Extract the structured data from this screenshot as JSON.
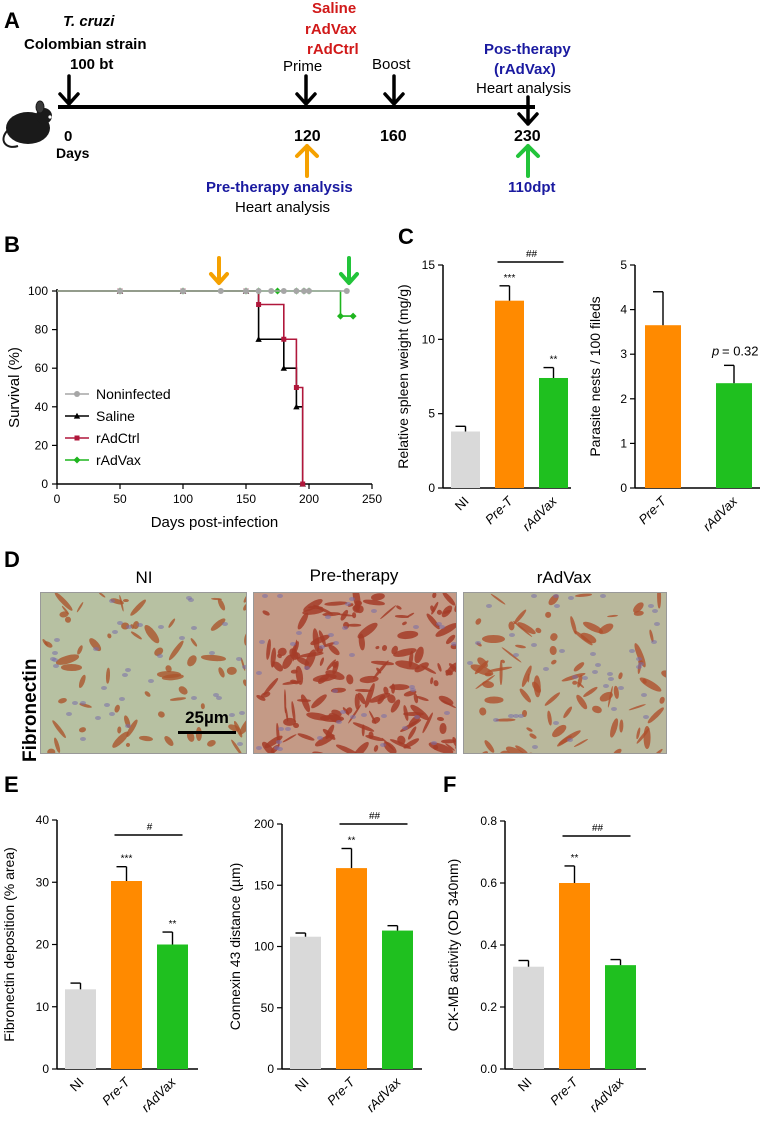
{
  "panels": {
    "a": "A",
    "b": "B",
    "c": "C",
    "d": "D",
    "e": "E",
    "f": "F"
  },
  "colors": {
    "nonin": "#a6a6a6",
    "saline": "#000000",
    "rAdCtrl": "#b0173b",
    "rAdVax": "#1fb51f",
    "ni_bar": "#d9d9d9",
    "pret": "#ff8a00",
    "radvax": "#1fc01f",
    "navy": "#1a1aa0",
    "red": "#d11919",
    "orange_arrow": "#f5a100",
    "green_arrow": "#22c43a"
  },
  "timeline": {
    "parasite": "T. cruzi",
    "strain": "Colombian strain",
    "dose": "100 bt",
    "treat1": "Saline",
    "treat2": "rAdVax",
    "treat3": "rAdCtrl",
    "prime": "Prime",
    "boost": "Boost",
    "post_title1": "Pos-therapy",
    "post_title2": "(rAdVax)",
    "post_heart": "Heart  analysis",
    "d0": "0",
    "days": "Days",
    "d120": "120",
    "d160": "160",
    "d230": "230",
    "pre_title": "Pre-therapy analysis",
    "pre_heart": "Heart analysis",
    "dpt": "110dpt"
  },
  "survival": {
    "chart_data": {
      "type": "line",
      "xlabel": "Days post-infection",
      "ylabel": "Survival (%)",
      "xlim": [
        0,
        250
      ],
      "ylim": [
        0,
        100
      ],
      "xticks": [
        "0",
        "50",
        "100",
        "150",
        "200",
        "250"
      ],
      "yticks": [
        "0",
        "20",
        "40",
        "60",
        "80",
        "100"
      ],
      "legend": [
        "Noninfected",
        "Saline",
        "rAdCtrl",
        "rAdVax"
      ],
      "series": [
        {
          "name": "Noninfected",
          "x": [
            0,
            50,
            100,
            130,
            150,
            160,
            170,
            180,
            190,
            196,
            200,
            230
          ],
          "y": [
            100,
            100,
            100,
            100,
            100,
            100,
            100,
            100,
            100,
            100,
            100,
            100
          ]
        },
        {
          "name": "Saline",
          "x": [
            0,
            50,
            100,
            150,
            160,
            180,
            190,
            195
          ],
          "y": [
            100,
            100,
            100,
            100,
            75,
            60,
            40,
            0
          ]
        },
        {
          "name": "rAdCtrl",
          "x": [
            0,
            50,
            100,
            150,
            160,
            180,
            190,
            195
          ],
          "y": [
            100,
            100,
            100,
            100,
            93,
            75,
            50,
            0
          ]
        },
        {
          "name": "rAdVax",
          "x": [
            0,
            50,
            100,
            150,
            160,
            175,
            190,
            196,
            200,
            225,
            235
          ],
          "y": [
            100,
            100,
            100,
            100,
            100,
            100,
            100,
            100,
            100,
            87,
            87
          ]
        }
      ]
    }
  },
  "spleen": {
    "chart_data": {
      "type": "bar",
      "ylabel": "Relative spleen weight (mg/g)",
      "categories": [
        "NI",
        "Pre-T",
        "rAdVax"
      ],
      "values": [
        3.8,
        12.6,
        7.4
      ],
      "errors": [
        0.35,
        1.0,
        0.7
      ],
      "ylim": [
        0,
        15
      ],
      "yticks": [
        "0",
        "5",
        "10",
        "15"
      ],
      "stars": [
        "",
        "***",
        "**"
      ],
      "hash": "##"
    }
  },
  "parasite": {
    "chart_data": {
      "type": "bar",
      "ylabel": "Parasite nests / 100 fileds",
      "categories": [
        "Pre-T",
        "rAdVax"
      ],
      "values": [
        3.65,
        2.35
      ],
      "errors": [
        0.75,
        0.4
      ],
      "ylim": [
        0,
        5
      ],
      "yticks": [
        "0",
        "1",
        "2",
        "3",
        "4",
        "5"
      ],
      "p_label": "p",
      "p_value": "= 0.32"
    }
  },
  "micro": {
    "row_label": "Fibronectin",
    "titles": [
      "NI",
      "Pre-therapy",
      "rAdVax"
    ],
    "scale": "25µm"
  },
  "fibronectin": {
    "chart_data": {
      "type": "bar",
      "ylabel": "Fibronectin deposition (% area)",
      "categories": [
        "NI",
        "Pre-T",
        "rAdVax"
      ],
      "values": [
        12.8,
        30.2,
        20.0
      ],
      "errors": [
        1.0,
        2.3,
        2.0
      ],
      "ylim": [
        0,
        40
      ],
      "yticks": [
        "0",
        "10",
        "20",
        "30",
        "40"
      ],
      "stars": [
        "",
        "***",
        "**"
      ],
      "hash": "#"
    }
  },
  "connexin": {
    "chart_data": {
      "type": "bar",
      "ylabel": "Connexin 43 distance (µm)",
      "categories": [
        "NI",
        "Pre-T",
        "rAdVax"
      ],
      "values": [
        108,
        164,
        113
      ],
      "errors": [
        3,
        16,
        4
      ],
      "ylim": [
        0,
        200
      ],
      "yticks": [
        "0",
        "50",
        "100",
        "150",
        "200"
      ],
      "stars": [
        "",
        "**",
        ""
      ],
      "hash": "##"
    }
  },
  "ckmb": {
    "chart_data": {
      "type": "bar",
      "ylabel": "CK-MB activity (OD 340nm)",
      "categories": [
        "NI",
        "Pre-T",
        "rAdVax"
      ],
      "values": [
        0.33,
        0.6,
        0.335
      ],
      "errors": [
        0.02,
        0.055,
        0.018
      ],
      "ylim": [
        0,
        0.8
      ],
      "yticks": [
        "0.0",
        "0.2",
        "0.4",
        "0.6",
        "0.8"
      ],
      "stars": [
        "",
        "**",
        ""
      ],
      "hash": "##"
    }
  }
}
